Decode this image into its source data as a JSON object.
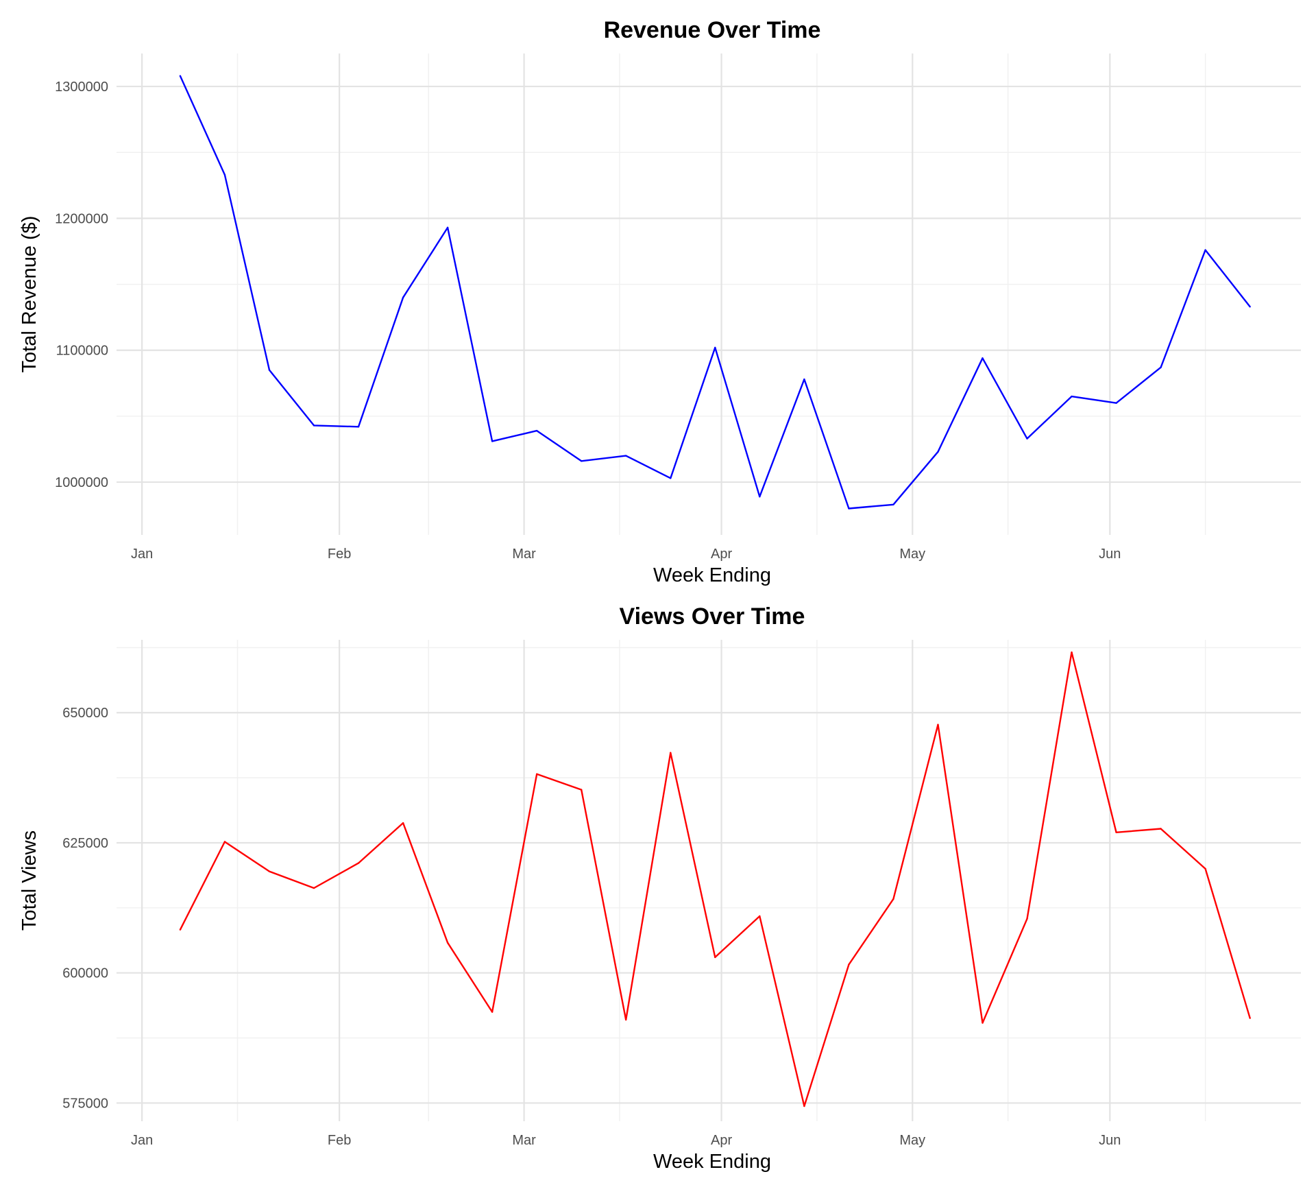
{
  "chart_data": [
    {
      "type": "line",
      "title": "Revenue Over Time",
      "xlabel": "Week Ending",
      "ylabel": "Total Revenue ($)",
      "x_ticks": [
        "Jan",
        "Feb",
        "Mar",
        "Apr",
        "May",
        "Jun"
      ],
      "y_ticks": [
        "1000000",
        "1100000",
        "1200000",
        "1300000"
      ],
      "ylim": [
        960000,
        1325000
      ],
      "grid": true,
      "series": [
        {
          "color": "#0000ff",
          "x": [
            "2024-01-07",
            "2024-01-14",
            "2024-01-21",
            "2024-01-28",
            "2024-02-04",
            "2024-02-11",
            "2024-02-18",
            "2024-02-25",
            "2024-03-03",
            "2024-03-10",
            "2024-03-17",
            "2024-03-24",
            "2024-03-31",
            "2024-04-07",
            "2024-04-14",
            "2024-04-21",
            "2024-04-28",
            "2024-05-05",
            "2024-05-12",
            "2024-05-19",
            "2024-05-26",
            "2024-06-02",
            "2024-06-09",
            "2024-06-16",
            "2024-06-23"
          ],
          "y": [
            1308000,
            1233000,
            1085000,
            1043000,
            1042000,
            1140000,
            1193000,
            1031000,
            1039000,
            1016000,
            1020000,
            1003000,
            1102000,
            989000,
            1078000,
            980000,
            983000,
            1023000,
            1094000,
            1033000,
            1065000,
            1060000,
            1087000,
            1176000,
            1133000
          ]
        }
      ]
    },
    {
      "type": "line",
      "title": "Views Over Time",
      "xlabel": "Week Ending",
      "ylabel": "Total Views",
      "x_ticks": [
        "Jan",
        "Feb",
        "Mar",
        "Apr",
        "May",
        "Jun"
      ],
      "y_ticks": [
        "575000",
        "600000",
        "625000",
        "650000"
      ],
      "ylim": [
        571500,
        664000
      ],
      "grid": true,
      "series": [
        {
          "color": "#ff0000",
          "x": [
            "2024-01-07",
            "2024-01-14",
            "2024-01-21",
            "2024-01-28",
            "2024-02-04",
            "2024-02-11",
            "2024-02-18",
            "2024-02-25",
            "2024-03-03",
            "2024-03-10",
            "2024-03-17",
            "2024-03-24",
            "2024-03-31",
            "2024-04-07",
            "2024-04-14",
            "2024-04-21",
            "2024-04-28",
            "2024-05-05",
            "2024-05-12",
            "2024-05-19",
            "2024-05-26",
            "2024-06-02",
            "2024-06-09",
            "2024-06-16",
            "2024-06-23"
          ],
          "y": [
            608300,
            625200,
            619500,
            616300,
            621100,
            628800,
            605800,
            592500,
            638200,
            635200,
            591000,
            642300,
            603000,
            610900,
            574400,
            601600,
            614200,
            647700,
            590400,
            610400,
            661600,
            627000,
            627700,
            620000,
            591300
          ]
        }
      ]
    }
  ]
}
